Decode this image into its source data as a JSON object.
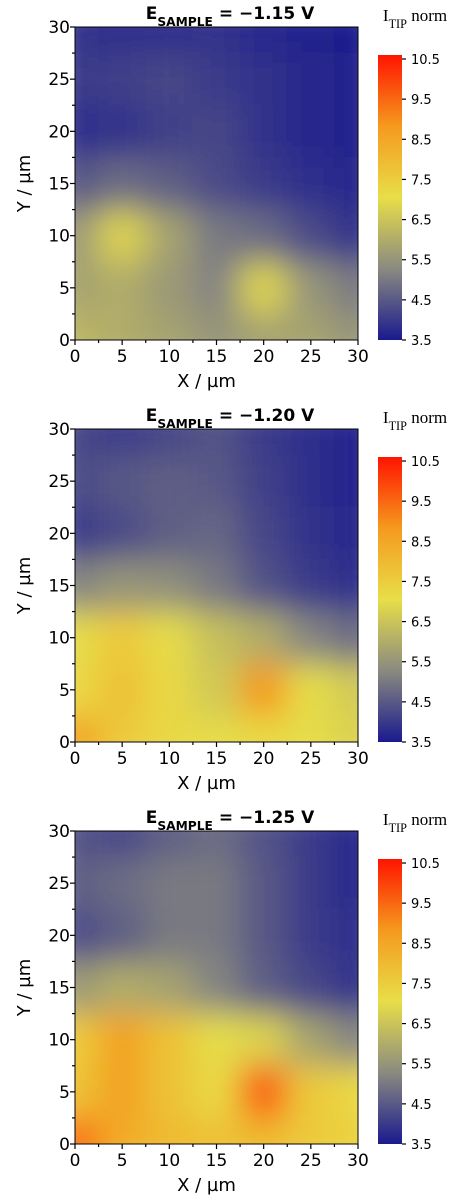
{
  "chart_data": [
    {
      "type": "heatmap",
      "title": {
        "main": "E",
        "sub": "SAMPLE",
        "rest": " = −1.15 V"
      },
      "colorbar_title": {
        "main": "I",
        "sub": "TIP",
        "rest": " norm"
      },
      "xlabel": "X / µm",
      "ylabel": "Y / µm",
      "x": [
        0,
        5,
        10,
        15,
        20,
        25,
        30
      ],
      "y": [
        30,
        25,
        20,
        15,
        10,
        5,
        0
      ],
      "z": [
        [
          3.9,
          3.8,
          3.8,
          3.9,
          3.7,
          3.6,
          3.5
        ],
        [
          4.0,
          4.1,
          4.2,
          4.0,
          3.9,
          3.7,
          3.6
        ],
        [
          3.8,
          3.9,
          4.1,
          4.2,
          3.9,
          3.7,
          3.6
        ],
        [
          4.5,
          4.8,
          4.6,
          4.3,
          4.0,
          3.8,
          3.7
        ],
        [
          5.6,
          6.8,
          5.8,
          5.0,
          4.8,
          4.3,
          3.9
        ],
        [
          5.8,
          6.0,
          5.6,
          5.2,
          6.8,
          5.5,
          5.0
        ],
        [
          6.2,
          6.0,
          5.8,
          5.5,
          5.8,
          5.8,
          5.5
        ]
      ],
      "xlim": [
        0,
        30
      ],
      "ylim": [
        0,
        30
      ],
      "xticks": [
        0,
        5,
        10,
        15,
        20,
        25,
        30
      ],
      "yticks": [
        0,
        5,
        10,
        15,
        20,
        25,
        30
      ],
      "clim": [
        3.5,
        10.6
      ],
      "cticks": [
        3.5,
        4.5,
        5.5,
        6.5,
        7.5,
        8.5,
        9.5,
        10.5
      ],
      "colorscale": [
        "#1a1a8e",
        "#8a8a80",
        "#e8de48",
        "#f59a1e",
        "#ff1400"
      ]
    },
    {
      "type": "heatmap",
      "title": {
        "main": "E",
        "sub": "SAMPLE",
        "rest": " = −1.20 V"
      },
      "colorbar_title": {
        "main": "I",
        "sub": "TIP",
        "rest": " norm"
      },
      "xlabel": "X / µm",
      "ylabel": "Y / µm",
      "x": [
        0,
        5,
        10,
        15,
        20,
        25,
        30
      ],
      "y": [
        30,
        25,
        20,
        15,
        10,
        5,
        0
      ],
      "z": [
        [
          4.2,
          4.0,
          4.2,
          4.4,
          4.0,
          3.8,
          3.6
        ],
        [
          4.3,
          4.5,
          4.6,
          4.5,
          4.1,
          3.8,
          3.6
        ],
        [
          4.0,
          4.3,
          4.6,
          4.7,
          4.2,
          3.9,
          3.7
        ],
        [
          5.2,
          5.5,
          5.4,
          5.0,
          4.4,
          4.0,
          3.8
        ],
        [
          7.0,
          7.6,
          7.0,
          6.4,
          6.0,
          5.2,
          4.8
        ],
        [
          7.2,
          7.8,
          7.2,
          6.6,
          8.8,
          7.0,
          6.6
        ],
        [
          8.6,
          7.6,
          7.2,
          7.0,
          7.2,
          7.0,
          6.8
        ]
      ],
      "xlim": [
        0,
        30
      ],
      "ylim": [
        0,
        30
      ],
      "xticks": [
        0,
        5,
        10,
        15,
        20,
        25,
        30
      ],
      "yticks": [
        0,
        5,
        10,
        15,
        20,
        25,
        30
      ],
      "clim": [
        3.5,
        10.6
      ],
      "cticks": [
        3.5,
        4.5,
        5.5,
        6.5,
        7.5,
        8.5,
        9.5,
        10.5
      ],
      "colorscale": [
        "#1a1a8e",
        "#8a8a80",
        "#e8de48",
        "#f59a1e",
        "#ff1400"
      ]
    },
    {
      "type": "heatmap",
      "title": {
        "main": "E",
        "sub": "SAMPLE",
        "rest": " = −1.25 V"
      },
      "colorbar_title": {
        "main": "I",
        "sub": "TIP",
        "rest": " norm"
      },
      "xlabel": "X / µm",
      "ylabel": "Y / µm",
      "x": [
        0,
        5,
        10,
        15,
        20,
        25,
        30
      ],
      "y": [
        30,
        25,
        20,
        15,
        10,
        5,
        0
      ],
      "z": [
        [
          4.4,
          4.2,
          4.6,
          4.8,
          4.4,
          4.0,
          3.7
        ],
        [
          4.6,
          4.8,
          5.0,
          5.0,
          4.5,
          4.0,
          3.7
        ],
        [
          4.3,
          4.6,
          5.0,
          5.0,
          4.5,
          4.0,
          3.8
        ],
        [
          5.6,
          6.0,
          5.8,
          5.2,
          4.6,
          4.2,
          3.9
        ],
        [
          7.6,
          8.6,
          7.8,
          7.0,
          6.8,
          5.8,
          5.2
        ],
        [
          7.8,
          8.6,
          7.8,
          7.2,
          9.6,
          7.6,
          7.2
        ],
        [
          9.4,
          8.4,
          8.0,
          7.8,
          8.0,
          7.6,
          7.4
        ]
      ],
      "xlim": [
        0,
        30
      ],
      "ylim": [
        0,
        30
      ],
      "xticks": [
        0,
        5,
        10,
        15,
        20,
        25,
        30
      ],
      "yticks": [
        0,
        5,
        10,
        15,
        20,
        25,
        30
      ],
      "clim": [
        3.5,
        10.6
      ],
      "cticks": [
        3.5,
        4.5,
        5.5,
        6.5,
        7.5,
        8.5,
        9.5,
        10.5
      ],
      "colorscale": [
        "#1a1a8e",
        "#8a8a80",
        "#e8de48",
        "#f59a1e",
        "#ff1400"
      ]
    }
  ]
}
